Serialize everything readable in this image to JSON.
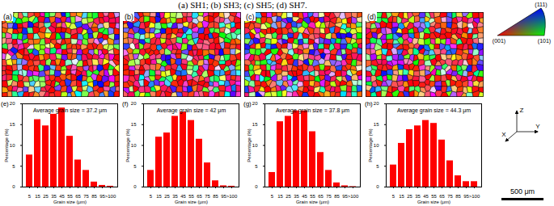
{
  "figure_title": "(a) SH1; (b) SH3; (c) SH5; (d) SH7.",
  "maps": [
    "(a)",
    "(b)",
    "(c)",
    "(d)"
  ],
  "ipf_key": {
    "top": "(111)",
    "bottom_left": "(001)",
    "bottom_right": "(101)"
  },
  "axes": {
    "z": "Z",
    "y": "Y",
    "x": "X"
  },
  "scale_bar": "500 μm",
  "chart_data": [
    {
      "type": "bar",
      "title": "(e)",
      "annotation": "Average grain size = 37.2 μm",
      "x_label": "Grain size (μm)",
      "y_label": "Percentage (%)",
      "categories": [
        "5",
        "15",
        "25",
        "35",
        "45",
        "55",
        "65",
        "75",
        "85",
        "95",
        ">100"
      ],
      "values": [
        7.7,
        16.2,
        14.7,
        17.5,
        19.0,
        12.2,
        6.5,
        4.0,
        1.2,
        0.4,
        0.2
      ],
      "color": "#ff0000",
      "ylim": [
        0,
        20
      ],
      "yticks": [
        0,
        5,
        10,
        15,
        20
      ]
    },
    {
      "type": "bar",
      "title": "(f)",
      "annotation": "Average grain size = 42 μm",
      "x_label": "Grain size (μm)",
      "y_label": "Percentage (%)",
      "categories": [
        "5",
        "15",
        "25",
        "35",
        "45",
        "55",
        "65",
        "75",
        "85",
        "95",
        ">100"
      ],
      "values": [
        4.0,
        12.0,
        13.0,
        17.0,
        18.0,
        16.0,
        11.5,
        5.8,
        1.5,
        0.3,
        0.2
      ],
      "color": "#ff0000",
      "ylim": [
        0,
        20
      ],
      "yticks": [
        0,
        5,
        10,
        15,
        20
      ]
    },
    {
      "type": "bar",
      "title": "(g)",
      "annotation": "Average grain size = 37.8 μm",
      "x_label": "Grain size (μm)",
      "y_label": "Percentage (%)",
      "categories": [
        "5",
        "15",
        "25",
        "35",
        "45",
        "55",
        "65",
        "75",
        "85",
        "95",
        ">100"
      ],
      "values": [
        3.5,
        15.7,
        17.0,
        18.3,
        18.3,
        13.3,
        8.3,
        4.0,
        1.0,
        0.3,
        0.1
      ],
      "color": "#ff0000",
      "ylim": [
        0,
        20
      ],
      "yticks": [
        0,
        5,
        10,
        15,
        20
      ]
    },
    {
      "type": "bar",
      "title": "(h)",
      "annotation": "Average grain size = 44.3 μm",
      "x_label": "Grain size (μm)",
      "y_label": "Percentage (%)",
      "categories": [
        "5",
        "15",
        "25",
        "35",
        "45",
        "55",
        "65",
        "75",
        "85",
        "95",
        ">100"
      ],
      "values": [
        5.3,
        10.5,
        13.8,
        14.7,
        16.0,
        15.3,
        11.3,
        6.3,
        2.7,
        1.3,
        1.3
      ],
      "color": "#ff0000",
      "ylim": [
        0,
        20
      ],
      "yticks": [
        0,
        5,
        10,
        15,
        20
      ]
    }
  ]
}
